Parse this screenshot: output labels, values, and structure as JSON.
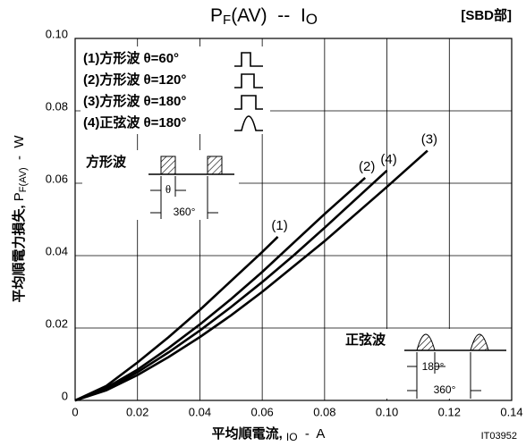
{
  "chart_data": {
    "type": "line",
    "title": [
      "P",
      "F",
      "(AV)  --  I",
      "O"
    ],
    "subtitle": "[SBD部]",
    "figure_code": "IT03952",
    "x_label": [
      "平均順電流, ",
      "IO",
      "  -  A"
    ],
    "y_label": [
      "平均順電力損失, ",
      "P",
      "F(AV)",
      "  -  W"
    ],
    "xlim": [
      0,
      0.14
    ],
    "ylim": [
      0,
      0.1
    ],
    "xticks": [
      0,
      0.02,
      0.04,
      0.06,
      0.08,
      {
        "value": 0.1,
        "label": "0.10"
      },
      0.12,
      0.14
    ],
    "yticks": [
      0,
      0.02,
      0.04,
      0.06,
      0.08,
      {
        "value": 0.1,
        "label": "0.10"
      }
    ],
    "grid": true,
    "legend_entries": [
      "(1)方形波 θ=60°",
      "(2)方形波 θ=120°",
      "(3)方形波 θ=180°",
      "(4)正弦波 θ=180°"
    ],
    "annotations": {
      "square_wave": "方形波",
      "square_theta": "θ",
      "square_period": "360°",
      "sine_wave": "正弦波",
      "sine_half": "180°",
      "sine_period": "360°"
    },
    "series": [
      {
        "name": "(1)",
        "color": "#000000",
        "x": [
          0,
          0.01,
          0.02,
          0.03,
          0.04,
          0.05,
          0.06,
          0.065
        ],
        "values": [
          0,
          0.004,
          0.0105,
          0.0175,
          0.025,
          0.033,
          0.041,
          0.0452
        ]
      },
      {
        "name": "(2)",
        "color": "#000000",
        "x": [
          0,
          0.01,
          0.02,
          0.03,
          0.04,
          0.05,
          0.06,
          0.07,
          0.08,
          0.093
        ],
        "values": [
          0,
          0.0035,
          0.0085,
          0.0145,
          0.021,
          0.028,
          0.0355,
          0.0435,
          0.0515,
          0.0615
        ]
      },
      {
        "name": "(4)",
        "color": "#000000",
        "x": [
          0,
          0.01,
          0.02,
          0.03,
          0.04,
          0.05,
          0.06,
          0.07,
          0.08,
          0.09,
          0.1
        ],
        "values": [
          0,
          0.003,
          0.0078,
          0.0133,
          0.0193,
          0.0258,
          0.0327,
          0.04,
          0.0477,
          0.0556,
          0.0635
        ]
      },
      {
        "name": "(3)",
        "color": "#000000",
        "x": [
          0,
          0.01,
          0.02,
          0.03,
          0.04,
          0.05,
          0.06,
          0.07,
          0.08,
          0.09,
          0.1,
          0.113
        ],
        "values": [
          0,
          0.0028,
          0.007,
          0.012,
          0.0175,
          0.0235,
          0.03,
          0.037,
          0.044,
          0.0515,
          0.059,
          0.069
        ]
      }
    ]
  }
}
